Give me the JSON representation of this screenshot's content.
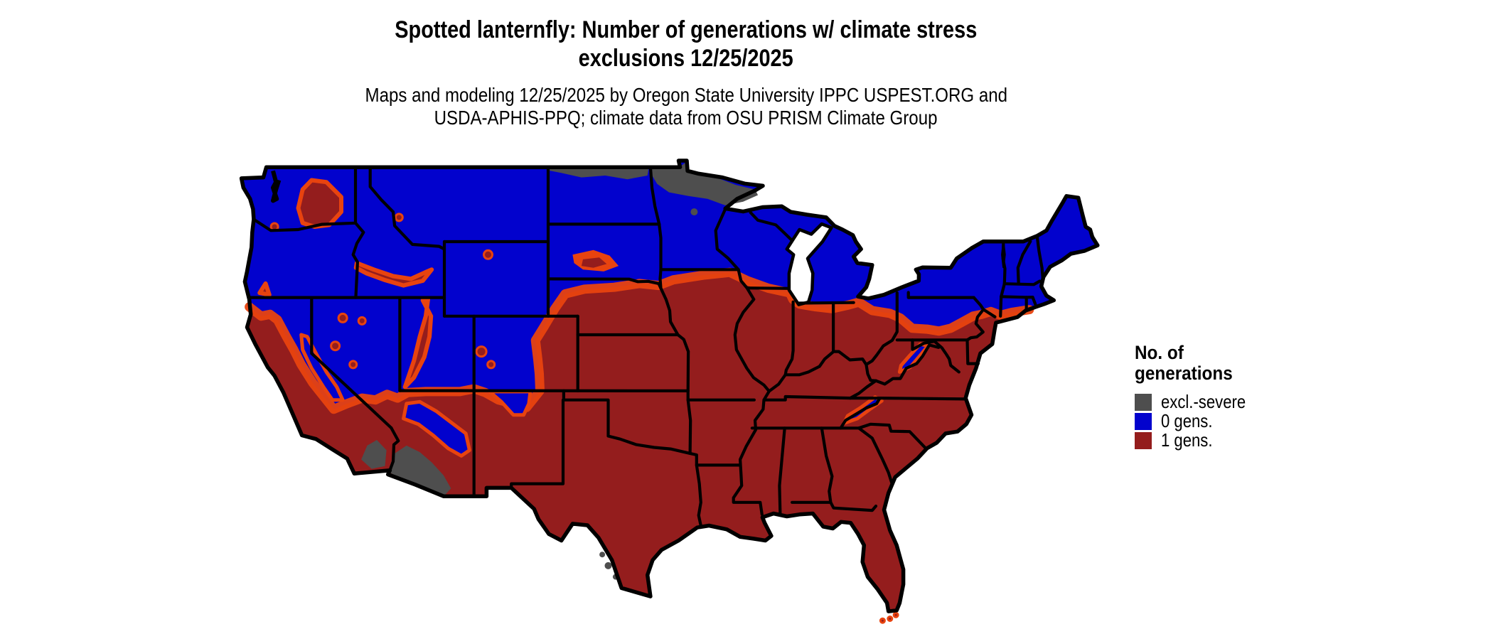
{
  "title": {
    "line1": "Spotted lanternfly: Number of generations w/ climate stress",
    "line2": "exclusions 12/25/2025"
  },
  "subtitle": {
    "line1": "Maps and modeling 12/25/2025 by Oregon State University IPPC USPEST.ORG and",
    "line2": "USDA-APHIS-PPQ; climate data from OSU PRISM Climate Group"
  },
  "legend": {
    "title_line1": "No. of",
    "title_line2": "generations",
    "items": [
      {
        "key": "excl-severe",
        "label": "excl.-severe",
        "color": "#4E4E4E"
      },
      {
        "key": "0-gens",
        "label": "0 gens.",
        "color": "#0202CD"
      },
      {
        "key": "1-gens",
        "label": "1 gens.",
        "color": "#941D1D"
      }
    ]
  },
  "map": {
    "colors": {
      "zero_gens": "#0202CD",
      "one_gen": "#941D1D",
      "excl_severe": "#4E4E4E",
      "transition_fringe": "#E8430F",
      "border": "#000000",
      "water_background": "#FFFFFF"
    },
    "regions_summary": {
      "excl_severe": "Strip along US-Canada border in North Dakota and northern Minnesota; southwestern Arizona and southeastern California deserts; small spots along the Rio Grande in south Texas",
      "zero_gens": "Northern tier and mountain West: WA, OR, ID, MT, WY, UT, most of NV, Dakotas, MN, WI, MI, New England, NY, PA, and Appalachian ridges",
      "one_gen": "Southern and eastern US: CA valleys and coast, southwest lowlands, TX and southern plains, Midwest south of ~43N, Southeast, mid-Atlantic coast; orange fringe marks the transition zone"
    }
  }
}
